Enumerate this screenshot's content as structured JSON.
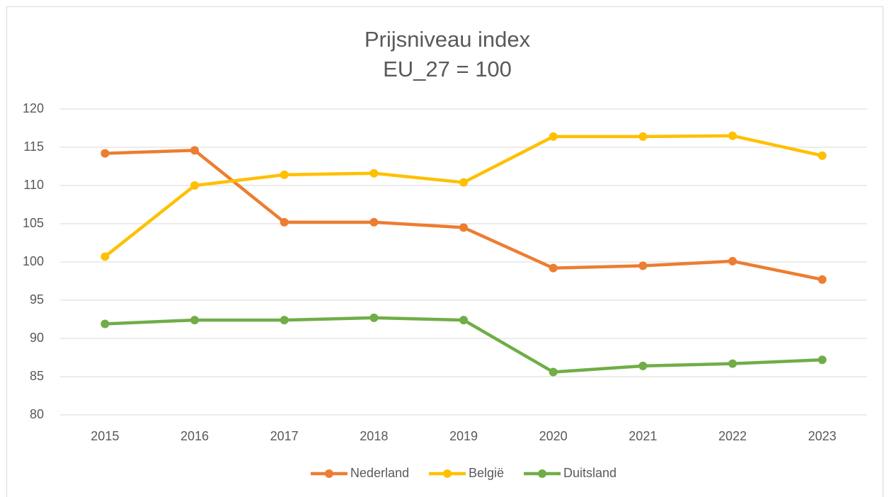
{
  "chart_data": {
    "type": "line",
    "title": "Prijsniveau index",
    "subtitle": "EU_27 = 100",
    "categories": [
      "2015",
      "2016",
      "2017",
      "2018",
      "2019",
      "2020",
      "2021",
      "2022",
      "2023"
    ],
    "series": [
      {
        "name": "Nederland",
        "color": "#ed7d31",
        "values": [
          114.2,
          114.6,
          105.2,
          105.2,
          104.5,
          99.2,
          99.5,
          100.1,
          97.7
        ]
      },
      {
        "name": "België",
        "color": "#ffc000",
        "values": [
          100.7,
          110.0,
          111.4,
          111.6,
          110.4,
          116.4,
          116.4,
          116.5,
          113.9
        ]
      },
      {
        "name": "Duitsland",
        "color": "#70ad47",
        "values": [
          91.9,
          92.4,
          92.4,
          92.7,
          92.4,
          85.6,
          86.4,
          86.7,
          87.2
        ]
      }
    ],
    "ylim": [
      80,
      120
    ],
    "yticks": [
      80,
      85,
      90,
      95,
      100,
      105,
      110,
      115,
      120
    ],
    "grid": true,
    "legend": "bottom"
  }
}
